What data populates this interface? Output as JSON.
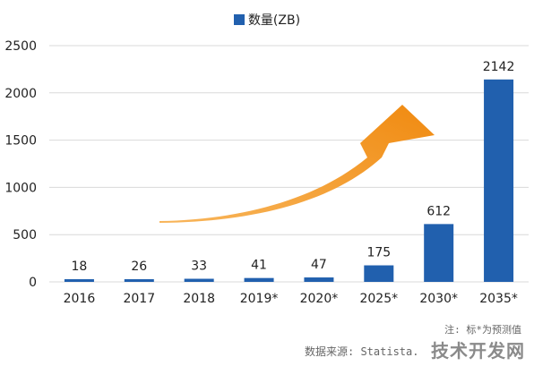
{
  "chart_data": {
    "type": "bar",
    "categories": [
      "2016",
      "2017",
      "2018",
      "2019*",
      "2020*",
      "2025*",
      "2030*",
      "2035*"
    ],
    "series": [
      {
        "name": "数量(ZB)",
        "values": [
          18,
          26,
          33,
          41,
          47,
          175,
          612,
          2142
        ]
      }
    ],
    "data_labels": [
      "18",
      "26",
      "33",
      "41",
      "47",
      "175",
      "612",
      "2142"
    ],
    "ylim": [
      0,
      2500
    ],
    "y_ticks": [
      "0",
      "500",
      "1000",
      "1500",
      "2000",
      "2500"
    ],
    "y_tick_values": [
      0,
      500,
      1000,
      1500,
      2000,
      2500
    ],
    "grid": true,
    "legend_position": "top-center",
    "xlabel": "",
    "ylabel": ""
  },
  "colors": {
    "bar": "#2160ae",
    "arrow": "#f5961e",
    "grid": "#d9d9d9"
  },
  "legend": {
    "label": "数量(ZB)"
  },
  "note": "注: 标*为预测值",
  "source": "数据来源: Statista.",
  "watermark": "技术开发网"
}
